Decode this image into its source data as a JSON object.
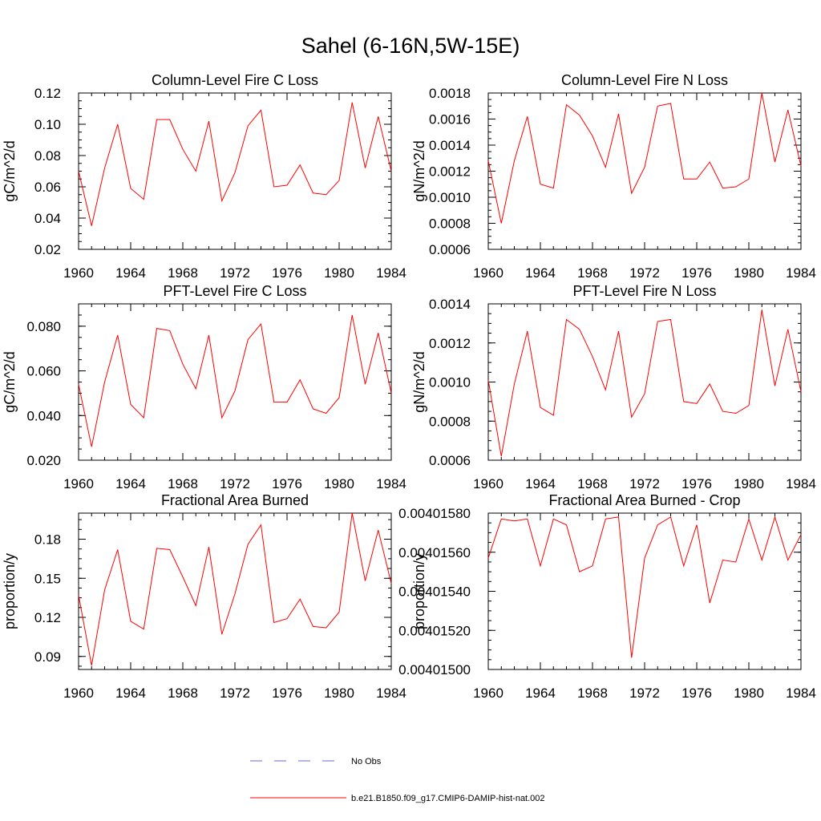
{
  "figure": {
    "title": "Sahel (6-16N,5W-15E)"
  },
  "legend": {
    "items": [
      {
        "label": "No Obs",
        "color": "#6a6acd",
        "dashed": true
      },
      {
        "label": "b.e21.B1850.f09_g17.CMIP6-DAMIP-hist-nat.002",
        "color": "#ff0000",
        "dashed": false
      }
    ]
  },
  "chart_data": [
    {
      "type": "line",
      "title": "Column-Level Fire C Loss",
      "xlabel": "",
      "ylabel": "gC/m^2/d",
      "xlim": [
        1960,
        1984
      ],
      "ylim": [
        0.02,
        0.12
      ],
      "xticks": [
        "1960",
        "1964",
        "1968",
        "1972",
        "1976",
        "1980",
        "1984"
      ],
      "yticks": [
        "0.02",
        "0.04",
        "0.06",
        "0.08",
        "0.10",
        "0.12"
      ],
      "x": [
        1960,
        1961,
        1962,
        1963,
        1964,
        1965,
        1966,
        1967,
        1968,
        1969,
        1970,
        1971,
        1972,
        1973,
        1974,
        1975,
        1976,
        1977,
        1978,
        1979,
        1980,
        1981,
        1982,
        1983,
        1984
      ],
      "series": [
        {
          "name": "b.e21.B1850.f09_g17.CMIP6-DAMIP-hist-nat.002",
          "color": "#ff0000",
          "values": [
            0.07,
            0.035,
            0.072,
            0.1,
            0.059,
            0.052,
            0.103,
            0.103,
            0.084,
            0.07,
            0.102,
            0.051,
            0.069,
            0.099,
            0.109,
            0.06,
            0.061,
            0.074,
            0.056,
            0.055,
            0.064,
            0.114,
            0.072,
            0.105,
            0.07
          ]
        }
      ]
    },
    {
      "type": "line",
      "title": "Column-Level Fire N Loss",
      "xlabel": "",
      "ylabel": "gN/m^2/d",
      "xlim": [
        1960,
        1984
      ],
      "ylim": [
        0.0006,
        0.0018
      ],
      "xticks": [
        "1960",
        "1964",
        "1968",
        "1972",
        "1976",
        "1980",
        "1984"
      ],
      "yticks": [
        "0.0006",
        "0.0008",
        "0.0010",
        "0.0012",
        "0.0014",
        "0.0016",
        "0.0018"
      ],
      "x": [
        1960,
        1961,
        1962,
        1963,
        1964,
        1965,
        1966,
        1967,
        1968,
        1969,
        1970,
        1971,
        1972,
        1973,
        1974,
        1975,
        1976,
        1977,
        1978,
        1979,
        1980,
        1981,
        1982,
        1983,
        1984
      ],
      "series": [
        {
          "name": "b.e21.B1850.f09_g17.CMIP6-DAMIP-hist-nat.002",
          "color": "#ff0000",
          "values": [
            0.00128,
            0.0008,
            0.00128,
            0.00162,
            0.0011,
            0.00107,
            0.00171,
            0.00163,
            0.00147,
            0.00123,
            0.00164,
            0.00103,
            0.00123,
            0.0017,
            0.00172,
            0.00114,
            0.00114,
            0.00127,
            0.00107,
            0.00108,
            0.00114,
            0.0018,
            0.00127,
            0.00167,
            0.00124
          ]
        }
      ]
    },
    {
      "type": "line",
      "title": "PFT-Level Fire C Loss",
      "xlabel": "",
      "ylabel": "gC/m^2/d",
      "xlim": [
        1960,
        1984
      ],
      "ylim": [
        0.02,
        0.09
      ],
      "xticks": [
        "1960",
        "1964",
        "1968",
        "1972",
        "1976",
        "1980",
        "1984"
      ],
      "yticks": [
        "0.020",
        "0.040",
        "0.060",
        "0.080"
      ],
      "x": [
        1960,
        1961,
        1962,
        1963,
        1964,
        1965,
        1966,
        1967,
        1968,
        1969,
        1970,
        1971,
        1972,
        1973,
        1974,
        1975,
        1976,
        1977,
        1978,
        1979,
        1980,
        1981,
        1982,
        1983,
        1984
      ],
      "series": [
        {
          "name": "b.e21.B1850.f09_g17.CMIP6-DAMIP-hist-nat.002",
          "color": "#ff0000",
          "values": [
            0.054,
            0.026,
            0.055,
            0.076,
            0.045,
            0.039,
            0.079,
            0.078,
            0.063,
            0.052,
            0.076,
            0.039,
            0.051,
            0.074,
            0.081,
            0.046,
            0.046,
            0.056,
            0.043,
            0.041,
            0.048,
            0.085,
            0.054,
            0.077,
            0.05
          ]
        }
      ]
    },
    {
      "type": "line",
      "title": "PFT-Level Fire N Loss",
      "xlabel": "",
      "ylabel": "gN/m^2/d",
      "xlim": [
        1960,
        1984
      ],
      "ylim": [
        0.0006,
        0.0014
      ],
      "xticks": [
        "1960",
        "1964",
        "1968",
        "1972",
        "1976",
        "1980",
        "1984"
      ],
      "yticks": [
        "0.0006",
        "0.0008",
        "0.0010",
        "0.0012",
        "0.0014"
      ],
      "x": [
        1960,
        1961,
        1962,
        1963,
        1964,
        1965,
        1966,
        1967,
        1968,
        1969,
        1970,
        1971,
        1972,
        1973,
        1974,
        1975,
        1976,
        1977,
        1978,
        1979,
        1980,
        1981,
        1982,
        1983,
        1984
      ],
      "series": [
        {
          "name": "b.e21.B1850.f09_g17.CMIP6-DAMIP-hist-nat.002",
          "color": "#ff0000",
          "values": [
            0.00101,
            0.00062,
            0.00099,
            0.00126,
            0.00087,
            0.00083,
            0.00132,
            0.00127,
            0.00113,
            0.00096,
            0.00126,
            0.00082,
            0.00094,
            0.00131,
            0.00132,
            0.0009,
            0.00089,
            0.00099,
            0.00085,
            0.00084,
            0.00088,
            0.00137,
            0.00098,
            0.00127,
            0.00095
          ]
        }
      ]
    },
    {
      "type": "line",
      "title": "Fractional Area Burned",
      "xlabel": "",
      "ylabel": "proportion/y",
      "xlim": [
        1960,
        1984
      ],
      "ylim": [
        0.08,
        0.2
      ],
      "xticks": [
        "1960",
        "1964",
        "1968",
        "1972",
        "1976",
        "1980",
        "1984"
      ],
      "yticks": [
        "0.09",
        "0.12",
        "0.15",
        "0.18"
      ],
      "x": [
        1960,
        1961,
        1962,
        1963,
        1964,
        1965,
        1966,
        1967,
        1968,
        1969,
        1970,
        1971,
        1972,
        1973,
        1974,
        1975,
        1976,
        1977,
        1978,
        1979,
        1980,
        1981,
        1982,
        1983,
        1984
      ],
      "series": [
        {
          "name": "b.e21.B1850.f09_g17.CMIP6-DAMIP-hist-nat.002",
          "color": "#ff0000",
          "values": [
            0.137,
            0.083,
            0.141,
            0.172,
            0.117,
            0.111,
            0.173,
            0.172,
            0.151,
            0.129,
            0.174,
            0.107,
            0.138,
            0.176,
            0.191,
            0.116,
            0.119,
            0.134,
            0.113,
            0.112,
            0.124,
            0.2,
            0.148,
            0.187,
            0.146
          ]
        }
      ]
    },
    {
      "type": "line",
      "title": "Fractional Area Burned - Crop",
      "xlabel": "",
      "ylabel": "proportion/y",
      "xlim": [
        1960,
        1984
      ],
      "ylim": [
        0.004015,
        0.0040158
      ],
      "xticks": [
        "1960",
        "1964",
        "1968",
        "1972",
        "1976",
        "1980",
        "1984"
      ],
      "yticks": [
        "0.00401500",
        "0.00401520",
        "0.00401540",
        "0.00401560",
        "0.00401580"
      ],
      "x": [
        1960,
        1961,
        1962,
        1963,
        1964,
        1965,
        1966,
        1967,
        1968,
        1969,
        1970,
        1971,
        1972,
        1973,
        1974,
        1975,
        1976,
        1977,
        1978,
        1979,
        1980,
        1981,
        1982,
        1983,
        1984
      ],
      "series": [
        {
          "name": "b.e21.B1850.f09_g17.CMIP6-DAMIP-hist-nat.002",
          "color": "#ff0000",
          "values": [
            0.00401557,
            0.00401577,
            0.00401576,
            0.00401577,
            0.00401553,
            0.00401577,
            0.00401574,
            0.0040155,
            0.00401553,
            0.00401577,
            0.00401578,
            0.00401506,
            0.00401557,
            0.00401574,
            0.00401578,
            0.00401553,
            0.00401574,
            0.00401534,
            0.00401556,
            0.00401555,
            0.00401577,
            0.00401556,
            0.00401578,
            0.00401556,
            0.00401569
          ]
        }
      ]
    }
  ]
}
